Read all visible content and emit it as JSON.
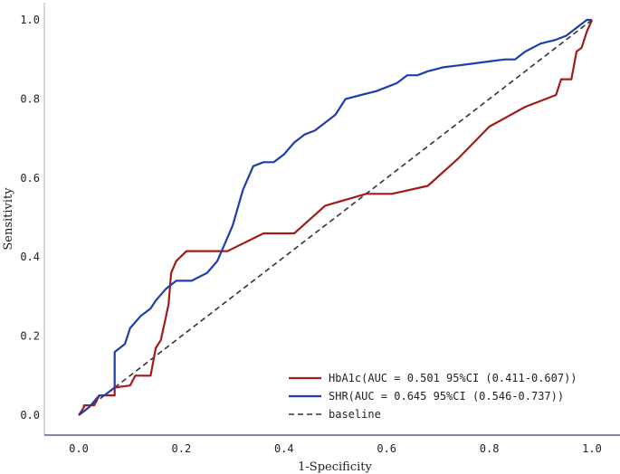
{
  "chart_data": {
    "type": "line",
    "title": "",
    "xlabel": "1-Specificity",
    "ylabel": "Sensitivity",
    "xlim": [
      -0.07,
      1.05
    ],
    "ylim": [
      -0.03,
      1.03
    ],
    "xticks": [
      0.0,
      0.2,
      0.4,
      0.6,
      0.8,
      1.0
    ],
    "yticks": [
      0.0,
      0.2,
      0.4,
      0.6,
      0.8,
      1.0
    ],
    "xtick_labels": [
      "0.0",
      "0.2",
      "0.4",
      "0.6",
      "0.8",
      "1.0"
    ],
    "ytick_labels": [
      "0.0",
      "0.2",
      "0.4",
      "0.6",
      "0.8",
      "1.0"
    ],
    "grid": false,
    "legend_position": "bottom-right",
    "series": [
      {
        "name": "HbA1c(AUC = 0.501 95%CI (0.411-0.607))",
        "color": "#a01c1c",
        "dash": "solid",
        "x": [
          0.0,
          0.01,
          0.01,
          0.03,
          0.04,
          0.07,
          0.07,
          0.1,
          0.11,
          0.14,
          0.15,
          0.16,
          0.17,
          0.175,
          0.18,
          0.19,
          0.21,
          0.27,
          0.29,
          0.36,
          0.42,
          0.48,
          0.56,
          0.61,
          0.68,
          0.74,
          0.8,
          0.87,
          0.93,
          0.94,
          0.96,
          0.97,
          0.98,
          0.99,
          1.0
        ],
        "y": [
          0.0,
          0.02,
          0.025,
          0.025,
          0.05,
          0.05,
          0.07,
          0.075,
          0.1,
          0.1,
          0.17,
          0.19,
          0.25,
          0.28,
          0.36,
          0.39,
          0.415,
          0.415,
          0.415,
          0.46,
          0.46,
          0.53,
          0.56,
          0.56,
          0.58,
          0.65,
          0.73,
          0.78,
          0.81,
          0.85,
          0.85,
          0.92,
          0.93,
          0.97,
          1.0
        ]
      },
      {
        "name": "SHR(AUC = 0.645 95%CI (0.546-0.737))",
        "color": "#1f3fa8",
        "dash": "solid",
        "x": [
          0.0,
          0.01,
          0.02,
          0.04,
          0.05,
          0.07,
          0.07,
          0.09,
          0.1,
          0.12,
          0.14,
          0.15,
          0.17,
          0.19,
          0.22,
          0.25,
          0.27,
          0.29,
          0.3,
          0.32,
          0.34,
          0.36,
          0.38,
          0.4,
          0.42,
          0.44,
          0.46,
          0.48,
          0.5,
          0.52,
          0.55,
          0.58,
          0.6,
          0.62,
          0.64,
          0.66,
          0.68,
          0.71,
          0.74,
          0.77,
          0.8,
          0.83,
          0.85,
          0.87,
          0.9,
          0.93,
          0.95,
          0.97,
          0.99,
          1.0
        ],
        "y": [
          0.0,
          0.01,
          0.02,
          0.05,
          0.05,
          0.07,
          0.16,
          0.18,
          0.22,
          0.25,
          0.27,
          0.29,
          0.32,
          0.34,
          0.34,
          0.36,
          0.39,
          0.45,
          0.48,
          0.57,
          0.63,
          0.64,
          0.64,
          0.66,
          0.69,
          0.71,
          0.72,
          0.74,
          0.76,
          0.8,
          0.81,
          0.82,
          0.83,
          0.84,
          0.86,
          0.86,
          0.87,
          0.88,
          0.885,
          0.89,
          0.895,
          0.9,
          0.9,
          0.92,
          0.94,
          0.95,
          0.96,
          0.98,
          1.0,
          1.0
        ]
      },
      {
        "name": "baseline",
        "color": "#333333",
        "dash": "dashed",
        "x": [
          0.0,
          1.0
        ],
        "y": [
          0.0,
          1.0
        ]
      }
    ]
  }
}
